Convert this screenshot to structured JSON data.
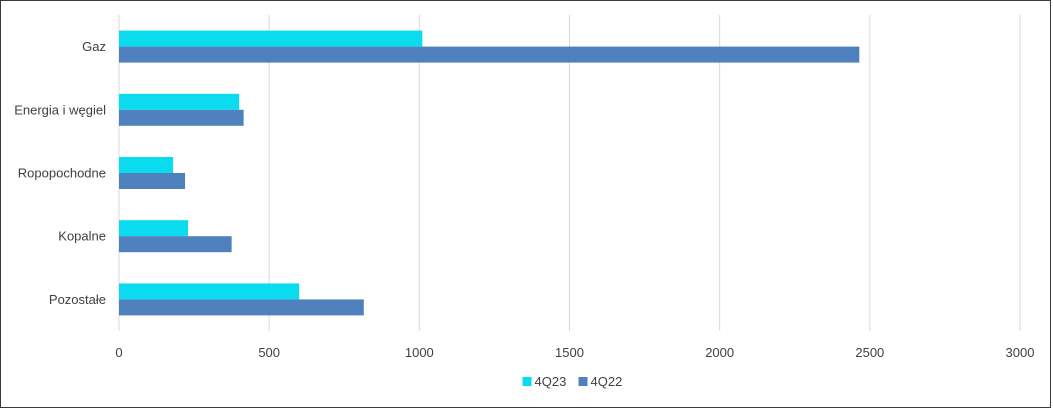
{
  "chart_data": {
    "type": "bar",
    "orientation": "horizontal",
    "categories": [
      "Gaz",
      "Energia i węgiel",
      "Ropopochodne",
      "Kopalne",
      "Pozostałe"
    ],
    "series": [
      {
        "name": "4Q23",
        "color": "#0BDBEF",
        "values": [
          1010,
          400,
          180,
          230,
          600
        ]
      },
      {
        "name": "4Q22",
        "color": "#4E81BD",
        "values": [
          2465,
          415,
          220,
          375,
          815
        ]
      }
    ],
    "xlim": [
      0,
      3000
    ],
    "xticks": [
      "0",
      "500",
      "1000",
      "1500",
      "2000",
      "2500",
      "3000"
    ],
    "title": "",
    "xlabel": "",
    "ylabel": "",
    "grid": "vertical",
    "legend_position": "bottom"
  }
}
